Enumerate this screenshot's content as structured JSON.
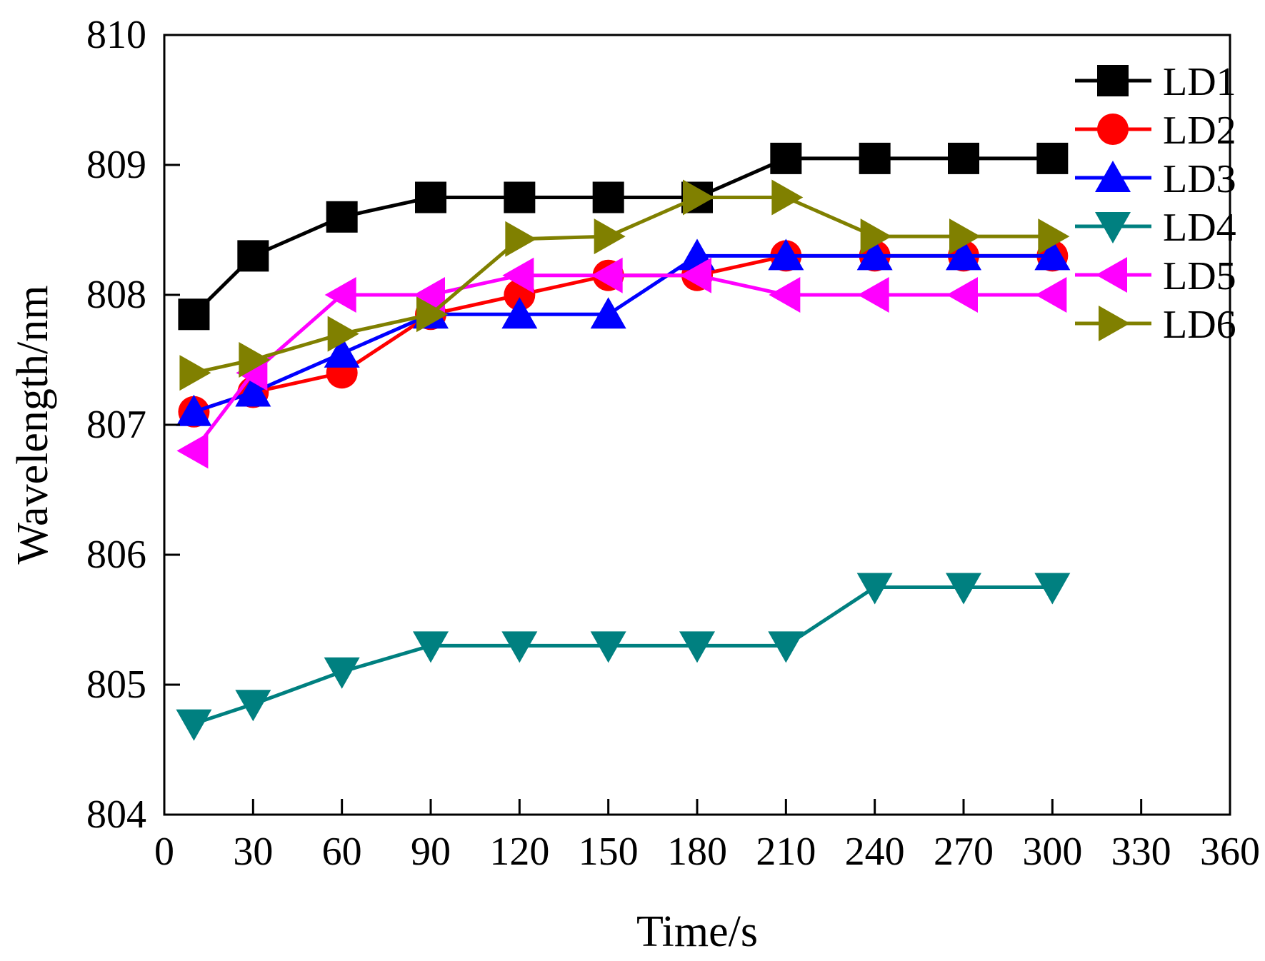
{
  "chart_data": {
    "type": "line",
    "title": "",
    "xlabel": "Time/s",
    "ylabel": "Wavelength/nm",
    "xlim": [
      0,
      360
    ],
    "ylim": [
      804,
      810
    ],
    "xticks": [
      0,
      30,
      60,
      90,
      120,
      150,
      180,
      210,
      240,
      270,
      300,
      330,
      360
    ],
    "yticks": [
      804,
      805,
      806,
      807,
      808,
      809,
      810
    ],
    "grid": false,
    "legend_position": "top-right",
    "x": [
      10,
      30,
      60,
      90,
      120,
      150,
      180,
      210,
      240,
      270,
      300
    ],
    "series": [
      {
        "name": "LD1",
        "color": "#000000",
        "marker": "square",
        "values": [
          807.85,
          808.3,
          808.6,
          808.75,
          808.75,
          808.75,
          808.75,
          809.05,
          809.05,
          809.05,
          809.05
        ]
      },
      {
        "name": "LD2",
        "color": "#ff0000",
        "marker": "circle",
        "values": [
          807.1,
          807.25,
          807.4,
          807.85,
          808.0,
          808.15,
          808.15,
          808.3,
          808.3,
          808.3,
          808.3
        ]
      },
      {
        "name": "LD3",
        "color": "#0000ff",
        "marker": "triangle-up",
        "values": [
          807.1,
          807.25,
          807.55,
          807.85,
          807.85,
          807.85,
          808.3,
          808.3,
          808.3,
          808.3,
          808.3
        ]
      },
      {
        "name": "LD4",
        "color": "#008080",
        "marker": "triangle-down",
        "values": [
          804.7,
          804.85,
          805.1,
          805.3,
          805.3,
          805.3,
          805.3,
          805.3,
          805.75,
          805.75,
          805.75
        ]
      },
      {
        "name": "LD5",
        "color": "#ff00ff",
        "marker": "triangle-left",
        "values": [
          806.8,
          807.4,
          808.0,
          808.0,
          808.15,
          808.15,
          808.15,
          808.0,
          808.0,
          808.0,
          808.0
        ]
      },
      {
        "name": "LD6",
        "color": "#808000",
        "marker": "triangle-right",
        "values": [
          807.4,
          807.5,
          807.7,
          807.85,
          808.43,
          808.45,
          808.75,
          808.75,
          808.45,
          808.45,
          808.45
        ]
      }
    ]
  }
}
